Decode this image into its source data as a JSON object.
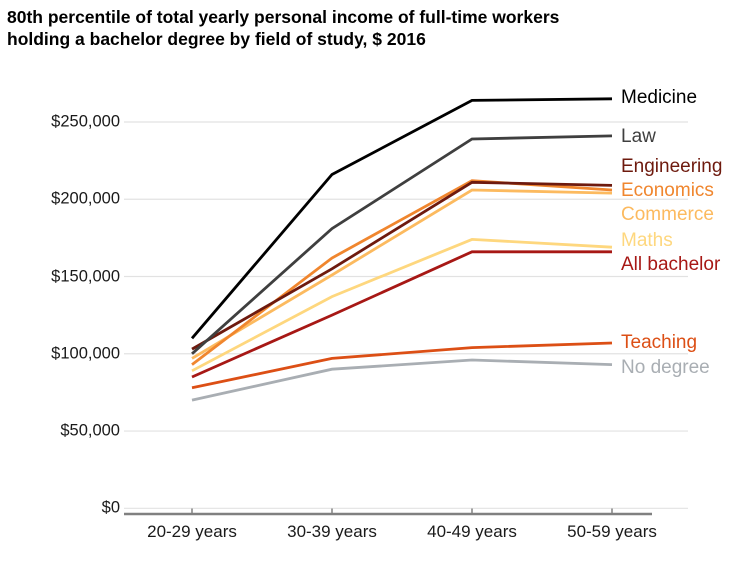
{
  "title": {
    "line1": "80th percentile of total yearly personal income of full-time workers",
    "line2": "holding a bachelor degree by field of study, $ 2016"
  },
  "chart_data": {
    "type": "line",
    "title": "80th percentile of total yearly personal income of full-time workers holding a bachelor degree by field of study, $ 2016",
    "categories": [
      "20-29 years",
      "30-39 years",
      "40-49 years",
      "50-59 years"
    ],
    "series": [
      {
        "name": "Medicine",
        "color": "#000000",
        "values": [
          110000,
          216000,
          264000,
          265000
        ]
      },
      {
        "name": "Law",
        "color": "#3f3f3f",
        "values": [
          100000,
          181000,
          239000,
          241000
        ]
      },
      {
        "name": "Engineering",
        "color": "#6e1a0e",
        "values": [
          103000,
          155000,
          211000,
          209000
        ]
      },
      {
        "name": "Economics",
        "color": "#f0862e",
        "values": [
          93000,
          162000,
          212000,
          206000
        ]
      },
      {
        "name": "Commerce",
        "color": "#fcba5f",
        "values": [
          97000,
          151000,
          206000,
          204000
        ]
      },
      {
        "name": "Maths",
        "color": "#fed77e",
        "values": [
          89000,
          137000,
          174000,
          169000
        ]
      },
      {
        "name": "All bachelor",
        "color": "#a71815",
        "values": [
          85000,
          125000,
          166000,
          166000
        ]
      },
      {
        "name": "Teaching",
        "color": "#dc4f15",
        "values": [
          78000,
          97000,
          104000,
          107000
        ]
      },
      {
        "name": "No degree",
        "color": "#a9aeb3",
        "values": [
          70000,
          90000,
          96000,
          93000
        ]
      }
    ],
    "xlabel": "",
    "ylabel": "",
    "ylim": [
      0,
      250000
    ],
    "ytick_values": [
      0,
      50000,
      100000,
      150000,
      200000,
      250000
    ],
    "ytick_labels": [
      "$0",
      "$50,000",
      "$100,000",
      "$150,000",
      "$200,000",
      "$250,000"
    ],
    "grid": true,
    "legend_position": "right",
    "colors": {
      "gridline": "#e2e2e2",
      "axis": "#808080",
      "axis_text": "#1a1a1a"
    }
  }
}
